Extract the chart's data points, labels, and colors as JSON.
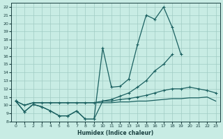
{
  "xlabel": "Humidex (Indice chaleur)",
  "bg_color": "#c8ece4",
  "grid_color": "#a0ccc4",
  "line_color": "#1a6060",
  "xlim": [
    -0.5,
    23.5
  ],
  "ylim": [
    8,
    22.5
  ],
  "yticks": [
    8,
    9,
    10,
    11,
    12,
    13,
    14,
    15,
    16,
    17,
    18,
    19,
    20,
    21,
    22
  ],
  "xticks": [
    0,
    1,
    2,
    3,
    4,
    5,
    6,
    7,
    8,
    9,
    10,
    11,
    12,
    13,
    14,
    15,
    16,
    17,
    18,
    19,
    20,
    21,
    22,
    23
  ],
  "line1_x": [
    0,
    1,
    2,
    3,
    4,
    5,
    6,
    7,
    8,
    9,
    10,
    11,
    12,
    13,
    14,
    15,
    16,
    17,
    18,
    19,
    20,
    21,
    22,
    23
  ],
  "line1_y": [
    10.5,
    9.2,
    10.1,
    9.8,
    9.3,
    8.7,
    8.7,
    9.3,
    8.3,
    8.3,
    17.0,
    12.2,
    12.3,
    13.2,
    17.4,
    21.0,
    20.5,
    22.0,
    19.5,
    16.2,
    null,
    null,
    null,
    null
  ],
  "line2_x": [
    0,
    1,
    2,
    3,
    4,
    5,
    6,
    7,
    8,
    9,
    10,
    11,
    12,
    13,
    14,
    15,
    16,
    17,
    18,
    19,
    20,
    21,
    22,
    23
  ],
  "line2_y": [
    10.5,
    9.2,
    10.1,
    9.8,
    9.3,
    8.7,
    8.7,
    9.3,
    8.3,
    8.3,
    10.5,
    10.7,
    11.1,
    11.5,
    12.2,
    13.0,
    14.2,
    15.0,
    16.2,
    null,
    null,
    null,
    null,
    null
  ],
  "line3_x": [
    0,
    1,
    2,
    3,
    4,
    5,
    6,
    7,
    8,
    9,
    10,
    11,
    12,
    13,
    14,
    15,
    16,
    17,
    18,
    19,
    20,
    21,
    22,
    23
  ],
  "line3_y": [
    10.5,
    10.0,
    10.3,
    10.3,
    10.3,
    10.3,
    10.3,
    10.3,
    10.3,
    10.3,
    10.5,
    10.5,
    10.7,
    10.8,
    11.0,
    11.2,
    11.5,
    11.8,
    12.0,
    12.0,
    12.2,
    12.0,
    11.8,
    11.5
  ],
  "line4_x": [
    0,
    1,
    2,
    3,
    4,
    5,
    6,
    7,
    8,
    9,
    10,
    11,
    12,
    13,
    14,
    15,
    16,
    17,
    18,
    19,
    20,
    21,
    22,
    23
  ],
  "line4_y": [
    10.5,
    10.0,
    10.3,
    10.3,
    10.3,
    10.3,
    10.3,
    10.3,
    10.3,
    10.3,
    10.3,
    10.3,
    10.4,
    10.4,
    10.5,
    10.5,
    10.6,
    10.7,
    10.8,
    10.8,
    10.9,
    10.9,
    11.0,
    10.5
  ]
}
